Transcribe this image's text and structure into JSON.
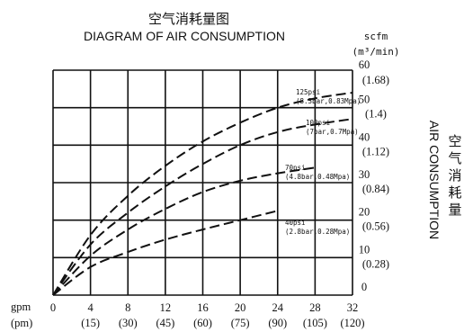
{
  "chart_data": {
    "type": "line",
    "title": "空气消耗量图",
    "subtitle": "DIAGRAM OF AIR CONSUMPTION",
    "y_title_en": "AIR CONSUMPTION",
    "y_title_cn": "空气消耗量",
    "x_unit_gpm": "gpm",
    "x_unit_lpm": "(pm)",
    "y_unit_scfm": "scfm",
    "y_unit_m3": "(m³/min)",
    "xlim": [
      0,
      32
    ],
    "ylim": [
      0,
      60
    ],
    "grid": true,
    "x_ticks": [
      {
        "v": 0,
        "gpm": "0",
        "lpm": ""
      },
      {
        "v": 4,
        "gpm": "4",
        "lpm": "(15)"
      },
      {
        "v": 8,
        "gpm": "8",
        "lpm": "(30)"
      },
      {
        "v": 12,
        "gpm": "12",
        "lpm": "(45)"
      },
      {
        "v": 16,
        "gpm": "16",
        "lpm": "(60)"
      },
      {
        "v": 20,
        "gpm": "20",
        "lpm": "(75)"
      },
      {
        "v": 24,
        "gpm": "24",
        "lpm": "(90)"
      },
      {
        "v": 28,
        "gpm": "28",
        "lpm": "(105)"
      },
      {
        "v": 32,
        "gpm": "32",
        "lpm": "(120)"
      }
    ],
    "y_ticks": [
      {
        "v": 0,
        "scfm": "0",
        "m3": ""
      },
      {
        "v": 10,
        "scfm": "10",
        "m3": "(0.28)"
      },
      {
        "v": 20,
        "scfm": "20",
        "m3": "(0.56)"
      },
      {
        "v": 30,
        "scfm": "30",
        "m3": "(0.84)"
      },
      {
        "v": 40,
        "scfm": "40",
        "m3": "(1.12)"
      },
      {
        "v": 50,
        "scfm": "50",
        "m3": "(1.4)"
      },
      {
        "v": 60,
        "scfm": "60",
        "m3": "(1.68)"
      }
    ],
    "series": [
      {
        "name": "40psi",
        "sub": "(2.8bar,0.28Mpa)",
        "x": [
          0,
          4,
          8,
          12,
          16,
          20,
          24
        ],
        "y": [
          0,
          7.5,
          11.5,
          14.8,
          17.5,
          20,
          22.5
        ]
      },
      {
        "name": "70psi",
        "sub": "(4.8bar,0.48Mpa)",
        "x": [
          0,
          4,
          8,
          12,
          16,
          20,
          24,
          28
        ],
        "y": [
          0,
          10.5,
          17.5,
          23,
          27.5,
          30.5,
          32.5,
          34
        ]
      },
      {
        "name": "100psi",
        "sub": "(7bar,0.7Mpa)",
        "x": [
          0,
          4,
          8,
          12,
          16,
          20,
          24,
          28,
          32
        ],
        "y": [
          0,
          13.5,
          22,
          29,
          35,
          40,
          43.5,
          45.5,
          47
        ]
      },
      {
        "name": "125psi",
        "sub": "(8.3bar,0.83Mpa)",
        "x": [
          0,
          4,
          8,
          12,
          16,
          20,
          24,
          28,
          32
        ],
        "y": [
          0,
          16,
          26.5,
          34.5,
          41,
          46,
          50,
          52.5,
          54
        ]
      }
    ]
  }
}
